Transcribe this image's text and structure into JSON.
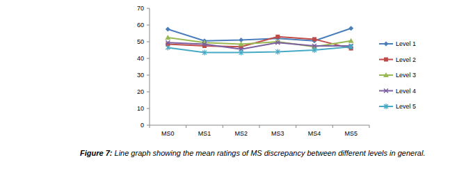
{
  "chart_data": {
    "type": "line",
    "title": "Figure 7: Line graph showing the mean ratings of MS discrepancy between different levels in general.",
    "categories": [
      "MS0",
      "MS1",
      "MS2",
      "MS3",
      "MS4",
      "MS5"
    ],
    "series": [
      {
        "name": "Level 1",
        "color": "#4a7ebb",
        "marker": "diamond",
        "values": [
          57.5,
          50.5,
          51,
          52,
          50.5,
          58
        ]
      },
      {
        "name": "Level 2",
        "color": "#be4b48",
        "marker": "square",
        "values": [
          48.5,
          47.5,
          47,
          53,
          51.5,
          46
        ]
      },
      {
        "name": "Level 3",
        "color": "#98b954",
        "marker": "triangle",
        "values": [
          52.5,
          49.5,
          48.5,
          50,
          47,
          50.5
        ]
      },
      {
        "name": "Level 4",
        "color": "#7d60a0",
        "marker": "x",
        "values": [
          49.5,
          48.5,
          45.5,
          49.5,
          47.5,
          47.5
        ]
      },
      {
        "name": "Level 5",
        "color": "#46aac5",
        "marker": "asterisk",
        "values": [
          46.5,
          43.5,
          43.5,
          44,
          45,
          47
        ]
      }
    ],
    "ylim": [
      0,
      70
    ],
    "yticks": [
      0,
      10,
      20,
      30,
      40,
      50,
      60,
      70
    ],
    "grid": false,
    "legend": "right"
  }
}
